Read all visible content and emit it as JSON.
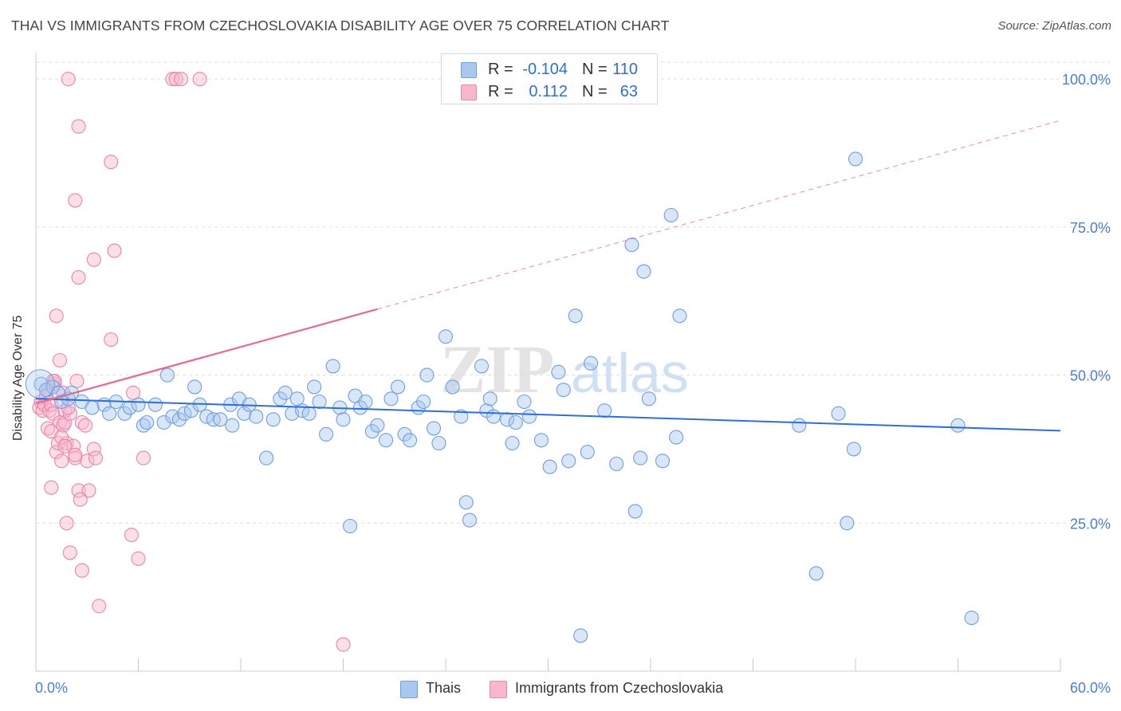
{
  "header": {
    "title": "THAI VS IMMIGRANTS FROM CZECHOSLOVAKIA DISABILITY AGE OVER 75 CORRELATION CHART",
    "source": "Source: ZipAtlas.com"
  },
  "legend_top": {
    "rows": [
      {
        "r_label": "R =",
        "r_value": "-0.104",
        "n_label": "N =",
        "n_value": "110"
      },
      {
        "r_label": "R =",
        "r_value": "0.112",
        "n_label": "N =",
        "n_value": "63"
      }
    ]
  },
  "legend_bottom": {
    "items": [
      {
        "label": "Thais"
      },
      {
        "label": "Immigrants from Czechoslovakia"
      }
    ]
  },
  "colors": {
    "blue_fill": "#a9c8f0",
    "blue_stroke": "#6f9fe0",
    "blue_line": "#2d6fd2",
    "pink_fill": "#f7b7cc",
    "pink_stroke": "#ea86a8",
    "pink_line": "#e46a92",
    "axis_label": "#4a7fd4",
    "grid": "#dddddd"
  },
  "chart_data": {
    "type": "scatter",
    "title": "THAI VS IMMIGRANTS FROM CZECHOSLOVAKIA DISABILITY AGE OVER 75 CORRELATION CHART",
    "ylabel": "Disability Age Over 75",
    "xlabel": "",
    "xlim": [
      0,
      60
    ],
    "ylim": [
      0,
      105
    ],
    "x_tick_labels": [
      {
        "value": 0,
        "label": "0.0%"
      },
      {
        "value": 60,
        "label": "60.0%"
      }
    ],
    "y_tick_labels": [
      {
        "value": 100,
        "label": "100.0%"
      },
      {
        "value": 75,
        "label": "75.0%"
      },
      {
        "value": 50,
        "label": "50.0%"
      },
      {
        "value": 25,
        "label": "25.0%"
      }
    ],
    "grid": true,
    "watermark": "ZIPatlas",
    "series": [
      {
        "name": "Thais",
        "color": "blue",
        "r": -0.104,
        "n": 110,
        "trend": {
          "x": [
            0,
            60
          ],
          "y": [
            46.0,
            40.6
          ],
          "style": "solid"
        },
        "points": [
          [
            0.3,
            48.5
          ],
          [
            0.6,
            47.5
          ],
          [
            1.0,
            48.0
          ],
          [
            1.3,
            47.0
          ],
          [
            1.5,
            45.5
          ],
          [
            1.9,
            46.0
          ],
          [
            2.1,
            47.0
          ],
          [
            2.7,
            45.5
          ],
          [
            3.3,
            44.5
          ],
          [
            4.0,
            45.0
          ],
          [
            4.3,
            43.5
          ],
          [
            4.7,
            45.5
          ],
          [
            5.2,
            43.5
          ],
          [
            5.5,
            44.5
          ],
          [
            6.0,
            45.0
          ],
          [
            6.3,
            41.5
          ],
          [
            6.5,
            42.0
          ],
          [
            7.0,
            45.0
          ],
          [
            7.5,
            42.0
          ],
          [
            7.7,
            50.0
          ],
          [
            8.0,
            43.0
          ],
          [
            8.4,
            42.5
          ],
          [
            8.7,
            43.5
          ],
          [
            9.1,
            44.0
          ],
          [
            9.3,
            48.0
          ],
          [
            9.6,
            45.0
          ],
          [
            10.0,
            43.0
          ],
          [
            10.4,
            42.5
          ],
          [
            10.8,
            42.5
          ],
          [
            11.4,
            45.0
          ],
          [
            11.5,
            41.5
          ],
          [
            11.9,
            46.0
          ],
          [
            12.2,
            43.5
          ],
          [
            12.5,
            45.0
          ],
          [
            12.9,
            43.0
          ],
          [
            13.5,
            36.0
          ],
          [
            13.9,
            42.5
          ],
          [
            14.3,
            46.0
          ],
          [
            14.6,
            47.0
          ],
          [
            15.0,
            43.5
          ],
          [
            15.3,
            46.0
          ],
          [
            15.6,
            44.0
          ],
          [
            16.0,
            43.5
          ],
          [
            16.3,
            48.0
          ],
          [
            16.6,
            45.5
          ],
          [
            17.0,
            40.0
          ],
          [
            17.4,
            51.5
          ],
          [
            17.8,
            44.5
          ],
          [
            18.0,
            42.5
          ],
          [
            18.4,
            24.5
          ],
          [
            18.7,
            46.5
          ],
          [
            19.0,
            44.5
          ],
          [
            19.3,
            45.5
          ],
          [
            19.7,
            40.5
          ],
          [
            20.0,
            41.5
          ],
          [
            20.5,
            39.0
          ],
          [
            20.8,
            46.0
          ],
          [
            21.2,
            48.0
          ],
          [
            21.6,
            40.0
          ],
          [
            21.9,
            39.0
          ],
          [
            22.4,
            44.5
          ],
          [
            22.7,
            45.5
          ],
          [
            22.9,
            50.0
          ],
          [
            23.3,
            41.0
          ],
          [
            23.6,
            38.5
          ],
          [
            24.0,
            56.5
          ],
          [
            24.4,
            48.0
          ],
          [
            24.9,
            43.0
          ],
          [
            25.2,
            28.5
          ],
          [
            25.4,
            25.5
          ],
          [
            26.1,
            51.5
          ],
          [
            26.4,
            44.0
          ],
          [
            26.6,
            46.0
          ],
          [
            26.8,
            43.0
          ],
          [
            27.6,
            42.5
          ],
          [
            27.9,
            38.5
          ],
          [
            28.1,
            42.0
          ],
          [
            28.6,
            45.5
          ],
          [
            28.9,
            43.0
          ],
          [
            29.6,
            39.0
          ],
          [
            30.1,
            34.5
          ],
          [
            30.6,
            50.5
          ],
          [
            30.9,
            47.5
          ],
          [
            31.2,
            35.5
          ],
          [
            31.6,
            60.0
          ],
          [
            31.9,
            6.0
          ],
          [
            32.3,
            37.0
          ],
          [
            32.5,
            52.0
          ],
          [
            33.3,
            44.0
          ],
          [
            34.0,
            35.0
          ],
          [
            34.9,
            72.0
          ],
          [
            35.1,
            27.0
          ],
          [
            35.4,
            36.0
          ],
          [
            35.6,
            67.5
          ],
          [
            35.9,
            46.0
          ],
          [
            36.7,
            35.5
          ],
          [
            37.2,
            77.0
          ],
          [
            37.5,
            39.5
          ],
          [
            37.7,
            60.0
          ],
          [
            44.7,
            41.5
          ],
          [
            45.7,
            16.5
          ],
          [
            47.0,
            43.5
          ],
          [
            47.5,
            25.0
          ],
          [
            47.9,
            37.5
          ],
          [
            48.0,
            86.5
          ],
          [
            54.0,
            41.5
          ],
          [
            54.8,
            9.0
          ]
        ]
      },
      {
        "name": "Immigrants from Czechoslovakia",
        "color": "pink",
        "r": 0.112,
        "n": 63,
        "trend": {
          "x": [
            0,
            60
          ],
          "y": [
            45.2,
            93.0
          ],
          "solid_until_x": 20.0,
          "style": "solid-then-dashed"
        },
        "points": [
          [
            0.2,
            44.5
          ],
          [
            0.3,
            45.5
          ],
          [
            0.4,
            44.0
          ],
          [
            0.5,
            45.0
          ],
          [
            0.6,
            46.5
          ],
          [
            0.7,
            47.5
          ],
          [
            0.8,
            44.0
          ],
          [
            0.9,
            45.0
          ],
          [
            1.0,
            43.5
          ],
          [
            1.1,
            48.5
          ],
          [
            1.2,
            37.0
          ],
          [
            1.3,
            38.5
          ],
          [
            1.4,
            42.0
          ],
          [
            1.5,
            35.5
          ],
          [
            1.6,
            41.5
          ],
          [
            1.7,
            44.0
          ],
          [
            1.8,
            38.5
          ],
          [
            0.7,
            41.0
          ],
          [
            0.9,
            40.5
          ],
          [
            1.0,
            49.0
          ],
          [
            1.1,
            49.0
          ],
          [
            1.2,
            60.0
          ],
          [
            1.4,
            52.5
          ],
          [
            1.5,
            39.5
          ],
          [
            1.6,
            47.0
          ],
          [
            1.7,
            42.0
          ],
          [
            2.0,
            43.5
          ],
          [
            2.2,
            38.0
          ],
          [
            2.3,
            36.0
          ],
          [
            2.4,
            49.0
          ],
          [
            2.5,
            30.5
          ],
          [
            2.7,
            42.0
          ],
          [
            2.9,
            41.5
          ],
          [
            3.0,
            35.5
          ],
          [
            3.1,
            30.5
          ],
          [
            3.4,
            37.5
          ],
          [
            3.5,
            36.0
          ],
          [
            3.7,
            11.0
          ],
          [
            1.9,
            100.0
          ],
          [
            2.5,
            92.0
          ],
          [
            2.3,
            79.5
          ],
          [
            2.5,
            66.5
          ],
          [
            3.4,
            69.5
          ],
          [
            4.4,
            86.0
          ],
          [
            4.6,
            71.0
          ],
          [
            4.4,
            56.0
          ],
          [
            5.7,
            47.0
          ],
          [
            6.3,
            36.0
          ],
          [
            6.0,
            19.0
          ],
          [
            5.6,
            23.0
          ],
          [
            2.0,
            20.0
          ],
          [
            2.7,
            17.0
          ],
          [
            1.8,
            25.0
          ],
          [
            2.6,
            29.0
          ],
          [
            2.3,
            36.5
          ],
          [
            1.7,
            38.0
          ],
          [
            1.9,
            44.5
          ],
          [
            8.0,
            100.0
          ],
          [
            8.2,
            100.0
          ],
          [
            8.5,
            100.0
          ],
          [
            9.6,
            100.0
          ],
          [
            18.0,
            4.5
          ],
          [
            0.9,
            31.0
          ]
        ]
      }
    ]
  }
}
